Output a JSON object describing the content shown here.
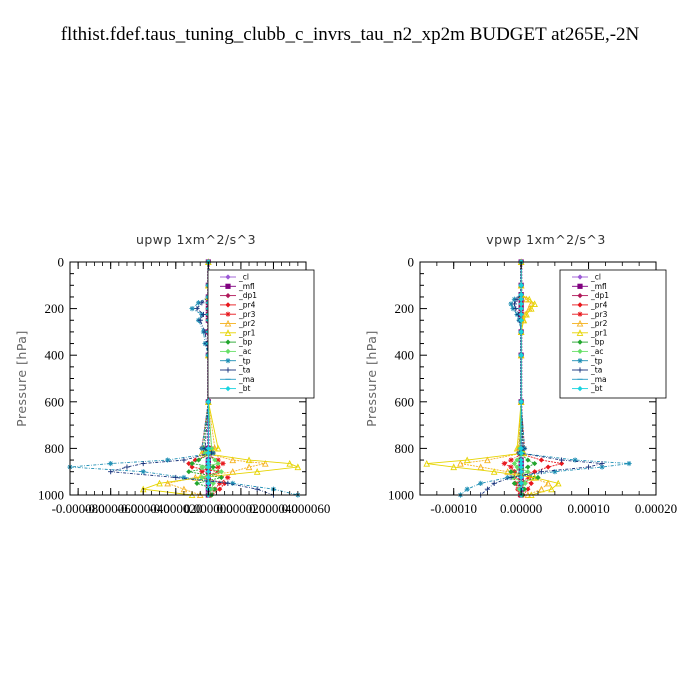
{
  "figure_title": "flthist.fdef.taus_tuning_clubb_c_invrs_tau_n2_xp2m  BUDGET at265E,-2N",
  "legend_entries": [
    {
      "label": "_cl",
      "color": "#9b59d6",
      "marker": "diamond"
    },
    {
      "label": "_mfl",
      "color": "#800080",
      "marker": "square"
    },
    {
      "label": "_dp1",
      "color": "#b0185a",
      "marker": "diamond"
    },
    {
      "label": "_pr4",
      "color": "#e8171d",
      "marker": "diamond"
    },
    {
      "label": "_pr3",
      "color": "#e8171d",
      "marker": "star"
    },
    {
      "label": "_pr2",
      "color": "#f5b321",
      "marker": "triangle"
    },
    {
      "label": "_pr1",
      "color": "#e6d400",
      "marker": "triangle"
    },
    {
      "label": "_bp",
      "color": "#22a62e",
      "marker": "diamond"
    },
    {
      "label": "_ac",
      "color": "#66e066",
      "marker": "diamond"
    },
    {
      "label": "_tp",
      "color": "#1e8fb4",
      "marker": "star"
    },
    {
      "label": "_ta",
      "color": "#15307a",
      "marker": "plus"
    },
    {
      "label": "_ma",
      "color": "#2b9bc4",
      "marker": "dash"
    },
    {
      "label": "_bt",
      "color": "#18d4e0",
      "marker": "diamond"
    }
  ],
  "chart_data": [
    {
      "type": "line",
      "title": "upwp   1xm^2/s^3",
      "ylabel": "Pressure [hPa]",
      "xlim": [
        -8.5e-05,
        6e-05
      ],
      "ylim": [
        1000,
        0
      ],
      "y_inverted": true,
      "xticks": [
        "-0.000080",
        "-0.000060",
        "-0.000040",
        "-0.000020",
        "0.000000",
        "0.000020",
        "0.000040",
        "0.000060"
      ],
      "xtick_values": [
        -8e-05,
        -6e-05,
        -4e-05,
        -2e-05,
        0,
        2e-05,
        4e-05,
        6e-05
      ],
      "yticks": [
        "0",
        "200",
        "400",
        "600",
        "800",
        "1000"
      ],
      "ytick_values": [
        0,
        200,
        400,
        600,
        800,
        1000
      ],
      "pressure": [
        0,
        100,
        150,
        175,
        200,
        225,
        250,
        300,
        350,
        400,
        600,
        800,
        820,
        850,
        865,
        880,
        900,
        925,
        950,
        975,
        1000
      ],
      "series": [
        {
          "values": [
            0,
            0,
            0,
            0,
            0,
            0,
            0,
            0,
            0,
            0,
            0,
            0,
            0,
            0,
            0,
            0,
            0,
            0,
            0,
            0,
            0
          ]
        },
        {
          "values": [
            0,
            0,
            0,
            0,
            0,
            0,
            0,
            0,
            0,
            0,
            0,
            0,
            0,
            0,
            0,
            0,
            0,
            0,
            0,
            0,
            0
          ]
        },
        {
          "values": [
            0,
            0,
            0,
            0,
            0,
            0,
            0,
            0,
            0,
            0,
            0,
            0,
            0,
            0,
            0,
            0,
            0,
            0,
            0,
            0,
            0
          ]
        },
        {
          "values": [
            0,
            0,
            0,
            0,
            0,
            0,
            0,
            0,
            0,
            0,
            0,
            -4e-06,
            3e-06,
            -8e-06,
            -1.2e-05,
            -1e-05,
            6e-06,
            -4e-06,
            1e-05,
            7e-06,
            2e-06
          ]
        },
        {
          "values": [
            0,
            0,
            0,
            0,
            0,
            0,
            0,
            0,
            0,
            0,
            0,
            2e-06,
            -3e-06,
            6e-06,
            9e-06,
            6e-06,
            -4e-06,
            1.2e-05,
            7e-06,
            4e-06,
            1e-06
          ]
        },
        {
          "values": [
            0,
            0,
            0,
            3e-06,
            5e-06,
            3e-06,
            4e-06,
            6e-06,
            2e-06,
            0,
            0,
            4e-06,
            -2e-06,
            1.5e-05,
            3.5e-05,
            2.5e-05,
            1.5e-05,
            -8e-06,
            -2.5e-05,
            -1.5e-05,
            -5e-06
          ]
        },
        {
          "values": [
            0,
            0,
            0,
            5e-06,
            8e-06,
            4e-06,
            6e-06,
            7e-06,
            3e-06,
            0,
            0,
            6e-06,
            -4e-06,
            2.5e-05,
            5e-05,
            5.5e-05,
            3e-05,
            -5e-06,
            -3e-05,
            -4e-05,
            -1e-05
          ]
        },
        {
          "values": [
            0,
            0,
            0,
            0,
            0,
            0,
            0,
            0,
            0,
            0,
            0,
            -3e-06,
            2e-06,
            -6e-06,
            -1e-05,
            3e-06,
            -1.2e-05,
            8e-06,
            -7e-06,
            4e-06,
            2e-06
          ]
        },
        {
          "values": [
            0,
            0,
            0,
            0,
            0,
            0,
            0,
            0,
            0,
            0,
            0,
            2e-06,
            -2e-06,
            4e-06,
            6e-06,
            -4e-06,
            8e-06,
            -4e-06,
            3e-06,
            2e-06,
            0
          ]
        },
        {
          "values": [
            0,
            0,
            0,
            -6e-06,
            -1e-05,
            -4e-06,
            -6e-06,
            -3e-06,
            -2e-06,
            0,
            0,
            -4e-06,
            3e-06,
            -2.5e-05,
            -6e-05,
            -8.5e-05,
            -4e-05,
            -1.5e-05,
            1.5e-05,
            4e-05,
            5.5e-05
          ]
        },
        {
          "values": [
            0,
            0,
            0,
            -4e-06,
            -7e-06,
            -3e-06,
            -5e-06,
            -2e-06,
            -1e-06,
            0,
            0,
            -2e-06,
            2e-06,
            -1.5e-05,
            -4e-05,
            -5e-05,
            -6e-05,
            -2e-05,
            1.2e-05,
            3e-05,
            4e-05
          ]
        },
        {
          "values": [
            0,
            0,
            0,
            0,
            0,
            0,
            0,
            0,
            0,
            0,
            0,
            0,
            0,
            0,
            0,
            0,
            0,
            0,
            0,
            0,
            0
          ]
        },
        {
          "values": [
            0,
            0,
            0,
            0,
            0,
            0,
            0,
            0,
            0,
            0,
            0,
            0,
            0,
            0,
            0,
            0,
            0,
            0,
            0,
            0,
            0
          ]
        }
      ]
    },
    {
      "type": "line",
      "title": "vpwp   1xm^2/s^3",
      "ylabel": "Pressure [hPa]",
      "xlim": [
        -0.00015,
        0.0002
      ],
      "ylim": [
        1000,
        0
      ],
      "y_inverted": true,
      "xticks": [
        "-0.00010",
        "0.00000",
        "0.00010",
        "0.00020"
      ],
      "xtick_values": [
        -0.0001,
        0,
        0.0001,
        0.0002
      ],
      "yticks": [
        "0",
        "200",
        "400",
        "600",
        "800",
        "1000"
      ],
      "ytick_values": [
        0,
        200,
        400,
        600,
        800,
        1000
      ],
      "pressure": [
        0,
        100,
        140,
        160,
        180,
        200,
        225,
        250,
        300,
        400,
        600,
        800,
        820,
        850,
        865,
        880,
        900,
        925,
        950,
        975,
        1000
      ],
      "series": [
        {
          "values": [
            0,
            0,
            0,
            0,
            0,
            0,
            0,
            0,
            0,
            0,
            0,
            0,
            0,
            0,
            0,
            0,
            0,
            0,
            0,
            0,
            0
          ]
        },
        {
          "values": [
            0,
            0,
            0,
            0,
            0,
            0,
            0,
            0,
            0,
            0,
            0,
            0,
            0,
            0,
            0,
            0,
            0,
            0,
            0,
            0,
            0
          ]
        },
        {
          "values": [
            0,
            0,
            0,
            0,
            0,
            0,
            0,
            0,
            0,
            0,
            0,
            0,
            0,
            0,
            0,
            0,
            0,
            0,
            0,
            0,
            0
          ]
        },
        {
          "values": [
            0,
            0,
            0,
            0,
            0,
            0,
            0,
            0,
            0,
            0,
            0,
            5e-06,
            -4e-06,
            3e-05,
            6e-05,
            4e-05,
            2e-05,
            -1e-05,
            1.5e-05,
            1e-05,
            3e-06
          ]
        },
        {
          "values": [
            0,
            0,
            0,
            0,
            0,
            0,
            0,
            0,
            0,
            0,
            0,
            -3e-06,
            3e-06,
            -1.5e-05,
            -2.5e-05,
            -1.5e-05,
            -1e-05,
            1.2e-05,
            -8e-06,
            -5e-06,
            -2e-06
          ]
        },
        {
          "values": [
            0,
            0,
            0,
            8e-06,
            1.5e-05,
            1.2e-05,
            6e-06,
            3e-06,
            0,
            0,
            0,
            -4e-06,
            3e-06,
            -5e-05,
            -9e-05,
            -6e-05,
            -2e-05,
            1.5e-05,
            4e-05,
            3e-05,
            1e-05
          ]
        },
        {
          "values": [
            0,
            0,
            0,
            1.2e-05,
            2e-05,
            1.5e-05,
            8e-06,
            4e-06,
            0,
            0,
            0,
            -6e-06,
            4e-06,
            -8e-05,
            -0.00014,
            -0.0001,
            -4e-05,
            2e-05,
            5.5e-05,
            4.5e-05,
            1.5e-05
          ]
        },
        {
          "values": [
            0,
            0,
            0,
            0,
            0,
            0,
            0,
            0,
            0,
            0,
            0,
            3e-06,
            -2e-06,
            1e-05,
            2e-05,
            1e-05,
            -1.5e-05,
            2.5e-05,
            -1e-05,
            5e-06,
            2e-06
          ]
        },
        {
          "values": [
            0,
            0,
            0,
            0,
            0,
            0,
            0,
            0,
            0,
            0,
            0,
            -2e-06,
            2e-06,
            -6e-06,
            -1e-05,
            -6e-06,
            1e-05,
            -1.2e-05,
            6e-06,
            -3e-06,
            0
          ]
        },
        {
          "values": [
            0,
            0,
            0,
            -1e-05,
            -1.5e-05,
            -1.2e-05,
            -6e-06,
            -3e-06,
            0,
            0,
            0,
            5e-06,
            -3e-06,
            8e-05,
            0.00016,
            0.00012,
            5e-05,
            -2e-05,
            -6e-05,
            -8e-05,
            -9e-05
          ]
        },
        {
          "values": [
            0,
            0,
            0,
            -6e-06,
            -1e-05,
            -8e-06,
            -4e-06,
            -2e-06,
            0,
            0,
            0,
            3e-06,
            -2e-06,
            6e-05,
            0.00012,
            0.0001,
            3e-05,
            -1.5e-05,
            -4e-05,
            -5e-05,
            -6e-05
          ]
        },
        {
          "values": [
            0,
            0,
            0,
            0,
            0,
            0,
            0,
            0,
            0,
            0,
            0,
            0,
            0,
            0,
            0,
            0,
            0,
            0,
            0,
            0,
            0
          ]
        },
        {
          "values": [
            0,
            0,
            0,
            0,
            0,
            0,
            0,
            0,
            0,
            0,
            0,
            0,
            0,
            0,
            0,
            0,
            0,
            0,
            0,
            0,
            0
          ]
        }
      ]
    }
  ]
}
